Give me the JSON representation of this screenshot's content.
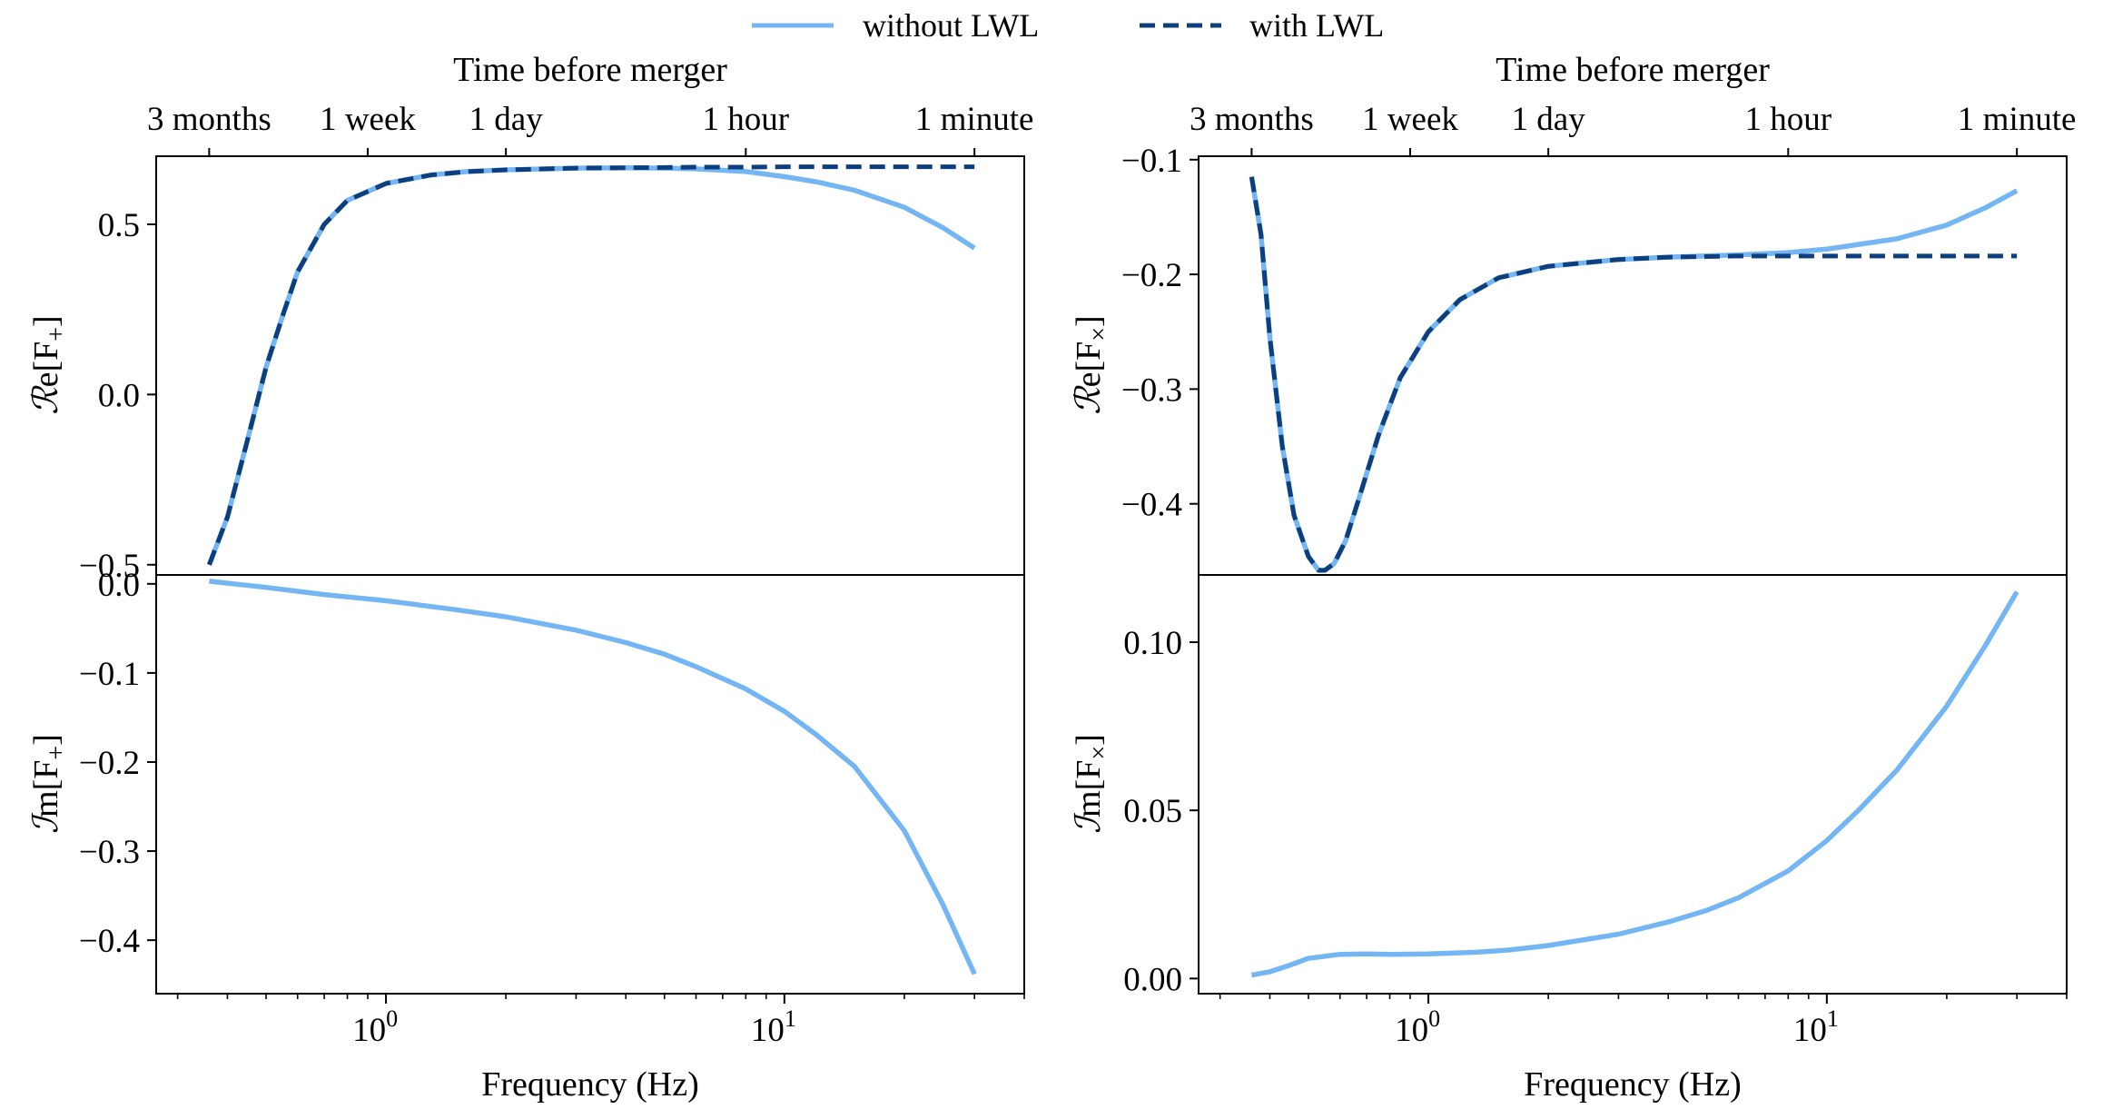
{
  "legend": [
    {
      "label": "without LWL",
      "color": "#74b6f4",
      "style": "solid"
    },
    {
      "label": "with LWL",
      "color": "#0d3f7e",
      "style": "dashed"
    }
  ],
  "top_axis": {
    "label": "Time before merger",
    "ticks": [
      {
        "label": "3 months",
        "freq": 0.36
      },
      {
        "label": "1 week",
        "freq": 0.9
      },
      {
        "label": "1 day",
        "freq": 2.0
      },
      {
        "label": "1 hour",
        "freq": 8.0
      },
      {
        "label": "1 minute",
        "freq": 30.0
      }
    ]
  },
  "x_axis": {
    "label": "Frequency (Hz)",
    "scale": "log",
    "xlim": [
      0.265,
      40.0
    ],
    "major_ticks": [
      {
        "value": 1,
        "label": "10^0"
      },
      {
        "value": 10,
        "label": "10^1"
      }
    ]
  },
  "chart_data": [
    {
      "id": "re-fplus",
      "type": "line",
      "ylabel": "Re[F+]",
      "ylim": [
        -0.53,
        0.7
      ],
      "yticks": [
        {
          "value": -0.5,
          "label": "−0.5"
        },
        {
          "value": 0.0,
          "label": "0.0"
        },
        {
          "value": 0.5,
          "label": "0.5"
        }
      ],
      "series": [
        {
          "name": "without LWL",
          "x": [
            0.36,
            0.4,
            0.45,
            0.5,
            0.55,
            0.6,
            0.7,
            0.8,
            1.0,
            1.3,
            1.6,
            2,
            3,
            4,
            5,
            6,
            8,
            10,
            12,
            15,
            20,
            25,
            30
          ],
          "y": [
            -0.5,
            -0.36,
            -0.13,
            0.08,
            0.23,
            0.36,
            0.5,
            0.57,
            0.62,
            0.645,
            0.655,
            0.66,
            0.665,
            0.666,
            0.665,
            0.663,
            0.655,
            0.64,
            0.625,
            0.6,
            0.55,
            0.49,
            0.43
          ]
        },
        {
          "name": "with LWL",
          "x": [
            0.36,
            0.4,
            0.45,
            0.5,
            0.55,
            0.6,
            0.7,
            0.8,
            1.0,
            1.3,
            1.6,
            2,
            3,
            4,
            5,
            6,
            8,
            10,
            12,
            15,
            20,
            25,
            30
          ],
          "y": [
            -0.5,
            -0.36,
            -0.13,
            0.08,
            0.23,
            0.36,
            0.5,
            0.57,
            0.62,
            0.645,
            0.655,
            0.66,
            0.665,
            0.666,
            0.667,
            0.668,
            0.668,
            0.669,
            0.669,
            0.669,
            0.669,
            0.669,
            0.669
          ]
        }
      ]
    },
    {
      "id": "re-fcross",
      "type": "line",
      "ylabel": "Re[F×]",
      "ylim": [
        -0.462,
        -0.097
      ],
      "yticks": [
        {
          "value": -0.1,
          "label": "−0.1"
        },
        {
          "value": -0.2,
          "label": "−0.2"
        },
        {
          "value": -0.3,
          "label": "−0.3"
        },
        {
          "value": -0.4,
          "label": "−0.4"
        }
      ],
      "series": [
        {
          "name": "without LWL",
          "x": [
            0.36,
            0.38,
            0.4,
            0.43,
            0.46,
            0.5,
            0.53,
            0.55,
            0.58,
            0.62,
            0.67,
            0.75,
            0.85,
            1.0,
            1.2,
            1.5,
            2,
            3,
            4,
            6,
            8,
            10,
            15,
            20,
            25,
            30
          ],
          "y": [
            -0.115,
            -0.165,
            -0.255,
            -0.35,
            -0.41,
            -0.446,
            -0.458,
            -0.458,
            -0.452,
            -0.432,
            -0.395,
            -0.34,
            -0.29,
            -0.25,
            -0.222,
            -0.203,
            -0.193,
            -0.187,
            -0.185,
            -0.183,
            -0.181,
            -0.178,
            -0.169,
            -0.157,
            -0.142,
            -0.127
          ]
        },
        {
          "name": "with LWL",
          "x": [
            0.36,
            0.38,
            0.4,
            0.43,
            0.46,
            0.5,
            0.53,
            0.55,
            0.58,
            0.62,
            0.67,
            0.75,
            0.85,
            1.0,
            1.2,
            1.5,
            2,
            3,
            4,
            6,
            8,
            10,
            15,
            20,
            25,
            30
          ],
          "y": [
            -0.115,
            -0.165,
            -0.255,
            -0.35,
            -0.41,
            -0.446,
            -0.458,
            -0.458,
            -0.452,
            -0.432,
            -0.395,
            -0.34,
            -0.29,
            -0.25,
            -0.222,
            -0.203,
            -0.193,
            -0.187,
            -0.185,
            -0.184,
            -0.184,
            -0.184,
            -0.184,
            -0.184,
            -0.184,
            -0.184
          ]
        }
      ]
    },
    {
      "id": "im-fplus",
      "type": "line",
      "ylabel": "Im[F+]",
      "ylim": [
        -0.46,
        0.01
      ],
      "yticks": [
        {
          "value": 0.0,
          "label": "0.0"
        },
        {
          "value": -0.1,
          "label": "−0.1"
        },
        {
          "value": -0.2,
          "label": "−0.2"
        },
        {
          "value": -0.3,
          "label": "−0.3"
        },
        {
          "value": -0.4,
          "label": "−0.4"
        }
      ],
      "series": [
        {
          "name": "without LWL",
          "x": [
            0.36,
            0.5,
            0.7,
            1.0,
            1.5,
            2,
            3,
            4,
            5,
            6,
            8,
            10,
            12,
            15,
            20,
            25,
            30
          ],
          "y": [
            0.003,
            -0.004,
            -0.012,
            -0.019,
            -0.029,
            -0.037,
            -0.052,
            -0.066,
            -0.079,
            -0.093,
            -0.118,
            -0.143,
            -0.169,
            -0.205,
            -0.277,
            -0.36,
            -0.438
          ]
        }
      ]
    },
    {
      "id": "im-fcross",
      "type": "line",
      "ylabel": "Im[F×]",
      "ylim": [
        -0.0045,
        0.12
      ],
      "yticks": [
        {
          "value": 0.0,
          "label": "0.00"
        },
        {
          "value": 0.05,
          "label": "0.05"
        },
        {
          "value": 0.1,
          "label": "0.10"
        }
      ],
      "series": [
        {
          "name": "without LWL",
          "x": [
            0.36,
            0.4,
            0.45,
            0.5,
            0.6,
            0.7,
            0.8,
            1.0,
            1.3,
            1.6,
            2,
            3,
            4,
            5,
            6,
            8,
            10,
            12,
            15,
            20,
            25,
            30
          ],
          "y": [
            0.001,
            0.002,
            0.004,
            0.006,
            0.0072,
            0.0073,
            0.0072,
            0.0073,
            0.0078,
            0.0085,
            0.0098,
            0.0132,
            0.0168,
            0.0203,
            0.024,
            0.032,
            0.041,
            0.05,
            0.062,
            0.081,
            0.099,
            0.115
          ]
        }
      ]
    }
  ]
}
